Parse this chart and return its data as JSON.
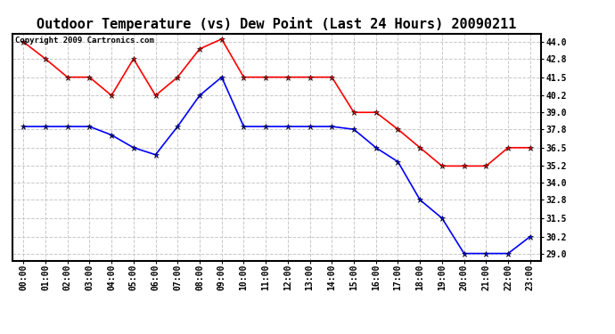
{
  "title": "Outdoor Temperature (vs) Dew Point (Last 24 Hours) 20090211",
  "copyright_text": "Copyright 2009 Cartronics.com",
  "x_labels": [
    "00:00",
    "01:00",
    "02:00",
    "03:00",
    "04:00",
    "05:00",
    "06:00",
    "07:00",
    "08:00",
    "09:00",
    "10:00",
    "11:00",
    "12:00",
    "13:00",
    "14:00",
    "15:00",
    "16:00",
    "17:00",
    "18:00",
    "19:00",
    "20:00",
    "21:00",
    "22:00",
    "23:00"
  ],
  "temp_red": [
    44.0,
    42.8,
    41.5,
    41.5,
    40.2,
    42.8,
    40.2,
    41.5,
    43.5,
    44.2,
    41.5,
    41.5,
    41.5,
    41.5,
    41.5,
    39.0,
    39.0,
    37.8,
    36.5,
    35.2,
    35.2,
    35.2,
    36.5,
    36.5
  ],
  "dew_blue": [
    38.0,
    38.0,
    38.0,
    38.0,
    37.4,
    36.5,
    36.0,
    38.0,
    40.2,
    41.5,
    38.0,
    38.0,
    38.0,
    38.0,
    38.0,
    37.8,
    36.5,
    35.5,
    32.8,
    31.5,
    29.0,
    29.0,
    29.0,
    30.2
  ],
  "ylim_min": 28.5,
  "ylim_max": 44.6,
  "yticks": [
    29.0,
    30.2,
    31.5,
    32.8,
    34.0,
    35.2,
    36.5,
    37.8,
    39.0,
    40.2,
    41.5,
    42.8,
    44.0
  ],
  "fig_bg_color": "#ffffff",
  "plot_bg_color": "#ffffff",
  "grid_color": "#c8c8c8",
  "border_color": "#000000",
  "red_color": "#ff0000",
  "blue_color": "#0000ff",
  "title_fontsize": 11,
  "tick_fontsize": 7,
  "copyright_fontsize": 6.5
}
